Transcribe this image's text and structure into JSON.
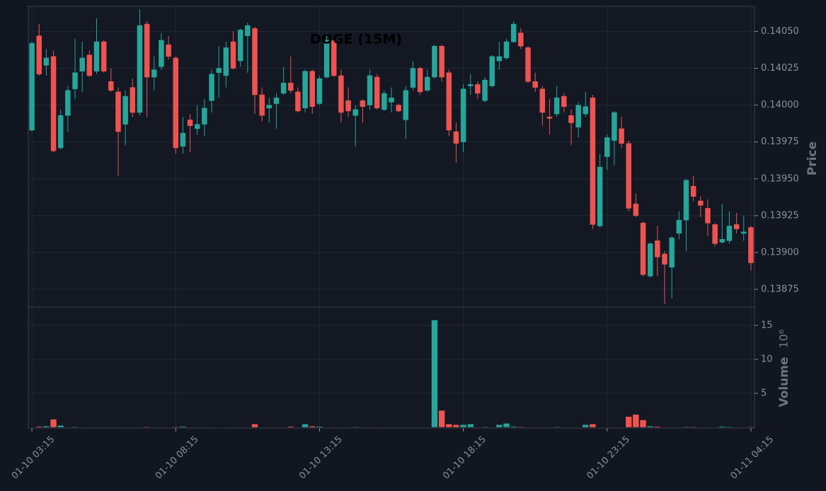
{
  "chart_data": {
    "type": "candlestick",
    "title": "DOGE (15M)",
    "ylabel": "Price",
    "volume_label": "Volume",
    "volume_scale": "10⁶",
    "up_color": "#26a69a",
    "down_color": "#ef5350",
    "grid": true,
    "categories": [
      "01-10 03:15",
      null,
      null,
      null,
      null,
      null,
      null,
      null,
      null,
      null,
      null,
      null,
      null,
      null,
      null,
      null,
      null,
      null,
      null,
      null,
      "01-10 08:15",
      null,
      null,
      null,
      null,
      null,
      null,
      null,
      null,
      null,
      null,
      null,
      null,
      null,
      null,
      null,
      null,
      null,
      null,
      null,
      "01-10 13:15",
      null,
      null,
      null,
      null,
      null,
      null,
      null,
      null,
      null,
      null,
      null,
      null,
      null,
      null,
      null,
      null,
      null,
      null,
      null,
      "01-10 18:15",
      null,
      null,
      null,
      null,
      null,
      null,
      null,
      null,
      null,
      null,
      null,
      null,
      null,
      null,
      null,
      null,
      null,
      null,
      null,
      "01-10 23:15",
      null,
      null,
      null,
      null,
      null,
      null,
      null,
      null,
      null,
      null,
      null,
      null,
      null,
      null,
      null,
      null,
      null,
      null,
      null,
      "01-11 04:15"
    ],
    "open": [
      0.13983,
      0.14047,
      0.14027,
      0.14033,
      0.13971,
      0.13993,
      0.14011,
      0.14023,
      0.14034,
      0.14023,
      0.14043,
      0.14016,
      0.14009,
      0.13987,
      0.14012,
      0.13995,
      0.14055,
      0.14019,
      0.14026,
      0.14041,
      0.14032,
      0.13972,
      0.1399,
      0.13984,
      0.13987,
      0.14003,
      0.14022,
      0.1402,
      0.14043,
      0.1403,
      0.14047,
      0.14052,
      0.14007,
      0.13998,
      0.14001,
      0.14008,
      0.14015,
      0.14009,
      0.13998,
      0.14023,
      0.14001,
      0.14019,
      0.14044,
      0.1402,
      0.14003,
      0.13993,
      0.14003,
      0.14,
      0.14019,
      0.13997,
      0.14002,
      0.14,
      0.1399,
      0.14012,
      0.14025,
      0.1401,
      0.14019,
      0.1404,
      0.14022,
      0.13982,
      0.13975,
      0.14013,
      0.14014,
      0.14003,
      0.14013,
      0.1403,
      0.14032,
      0.14043,
      0.14049,
      0.14039,
      0.14016,
      0.14011,
      0.13992,
      0.13994,
      0.14006,
      0.13993,
      0.13985,
      0.13994,
      0.14005,
      0.13918,
      0.13965,
      0.13976,
      0.13984,
      0.13974,
      0.13933,
      0.1392,
      0.13884,
      0.13908,
      0.13899,
      0.1389,
      0.13913,
      0.13922,
      0.13945,
      0.13935,
      0.1393,
      0.13919,
      0.13907,
      0.13908,
      0.13919,
      0.13913,
      0.13917
    ],
    "high": [
      0.14043,
      0.14055,
      0.14038,
      0.14037,
      0.13997,
      0.14013,
      0.14045,
      0.14043,
      0.14037,
      0.14059,
      0.14044,
      0.14025,
      0.14012,
      0.1401,
      0.14018,
      0.14065,
      0.14057,
      0.14033,
      0.14049,
      0.14047,
      0.14033,
      0.13992,
      0.13994,
      0.14,
      0.14004,
      0.14024,
      0.1404,
      0.14043,
      0.1405,
      0.14052,
      0.14056,
      0.14053,
      0.14012,
      0.14005,
      0.14008,
      0.14026,
      0.14033,
      0.14012,
      0.14024,
      0.14024,
      0.1402,
      0.14049,
      0.14045,
      0.14024,
      0.14012,
      0.14,
      0.14004,
      0.14024,
      0.14021,
      0.1401,
      0.14012,
      0.14001,
      0.14013,
      0.1403,
      0.14026,
      0.14024,
      0.14041,
      0.14041,
      0.14024,
      0.13988,
      0.14014,
      0.14021,
      0.14016,
      0.14019,
      0.14034,
      0.14043,
      0.14045,
      0.14057,
      0.14052,
      0.1404,
      0.14022,
      0.14013,
      0.14004,
      0.14013,
      0.14008,
      0.13997,
      0.14002,
      0.14009,
      0.14007,
      0.13967,
      0.1398,
      0.13996,
      0.13992,
      0.13976,
      0.1394,
      0.13921,
      0.13907,
      0.13918,
      0.13901,
      0.13911,
      0.13928,
      0.1395,
      0.13952,
      0.13938,
      0.13936,
      0.1392,
      0.13933,
      0.13928,
      0.13927,
      0.13925,
      0.13918
    ],
    "low": [
      0.13982,
      0.1402,
      0.1402,
      0.13968,
      0.1397,
      0.13982,
      0.14004,
      0.14009,
      0.14019,
      0.14021,
      0.14022,
      0.14009,
      0.13952,
      0.13973,
      0.13992,
      0.13993,
      0.13992,
      0.1401,
      0.14024,
      0.14031,
      0.13967,
      0.13967,
      0.13968,
      0.1398,
      0.13979,
      0.13995,
      0.14005,
      0.14012,
      0.14024,
      0.14026,
      0.14022,
      0.13994,
      0.13989,
      0.13988,
      0.13984,
      0.14007,
      0.14008,
      0.13995,
      0.13995,
      0.13994,
      0.14,
      0.14018,
      0.14019,
      0.13988,
      0.13992,
      0.13972,
      0.13988,
      0.13997,
      0.13997,
      0.13996,
      0.13995,
      0.13995,
      0.13977,
      0.1401,
      0.14007,
      0.14009,
      0.14018,
      0.14016,
      0.13979,
      0.13961,
      0.13968,
      0.14007,
      0.14004,
      0.14002,
      0.14012,
      0.14024,
      0.14031,
      0.14042,
      0.14038,
      0.14015,
      0.14009,
      0.13986,
      0.1398,
      0.13992,
      0.13995,
      0.13973,
      0.13978,
      0.13992,
      0.13916,
      0.13917,
      0.13956,
      0.13959,
      0.13971,
      0.13928,
      0.13924,
      0.13884,
      0.13883,
      0.13884,
      0.13865,
      0.13869,
      0.13909,
      0.13901,
      0.13935,
      0.13924,
      0.13911,
      0.13904,
      0.13906,
      0.13906,
      0.13913,
      0.13908,
      0.13888
    ],
    "close": [
      0.14042,
      0.14021,
      0.14032,
      0.13969,
      0.13993,
      0.1401,
      0.14022,
      0.14032,
      0.1402,
      0.14043,
      0.14023,
      0.1401,
      0.13982,
      0.14006,
      0.13995,
      0.14054,
      0.14019,
      0.14024,
      0.14044,
      0.14033,
      0.13971,
      0.13981,
      0.13986,
      0.13987,
      0.13998,
      0.14021,
      0.14025,
      0.14039,
      0.14025,
      0.14051,
      0.14054,
      0.14007,
      0.13993,
      0.14,
      0.14005,
      0.14015,
      0.1401,
      0.13996,
      0.14023,
      0.13999,
      0.14018,
      0.14044,
      0.1402,
      0.13995,
      0.13996,
      0.13997,
      0.13999,
      0.1402,
      0.13998,
      0.14008,
      0.14005,
      0.13996,
      0.1401,
      0.14025,
      0.14009,
      0.14019,
      0.1404,
      0.14019,
      0.13983,
      0.13974,
      0.14011,
      0.14014,
      0.14008,
      0.14017,
      0.14033,
      0.14033,
      0.14043,
      0.14055,
      0.1404,
      0.14016,
      0.14012,
      0.13995,
      0.13991,
      0.14005,
      0.13999,
      0.13988,
      0.14,
      0.13999,
      0.13919,
      0.13958,
      0.13978,
      0.13995,
      0.13974,
      0.1393,
      0.13925,
      0.13885,
      0.13906,
      0.13897,
      0.13892,
      0.1391,
      0.13922,
      0.13949,
      0.13938,
      0.13932,
      0.1392,
      0.13906,
      0.13909,
      0.13918,
      0.13916,
      0.13914,
      0.13893
    ],
    "volume": [
      0.05,
      0.15,
      0.2,
      1.2,
      0.3,
      0,
      0.1,
      0.05,
      0,
      0,
      0,
      0,
      0,
      0.05,
      0.05,
      0,
      0.1,
      0,
      0,
      0.05,
      0.1,
      0.15,
      0,
      0,
      0,
      0,
      0.05,
      0.05,
      0,
      0,
      0,
      0.5,
      0,
      0,
      0,
      0,
      0.15,
      0,
      0.5,
      0.2,
      0.15,
      0,
      0,
      0.05,
      0,
      0.1,
      0,
      0,
      0.05,
      0,
      0.05,
      0,
      0,
      0,
      0,
      0,
      15.8,
      2.5,
      0.5,
      0.4,
      0.4,
      0.5,
      0,
      0.1,
      0,
      0.4,
      0.6,
      0.15,
      0.1,
      0,
      0,
      0,
      0,
      0.1,
      0,
      0.05,
      0,
      0.4,
      0.5,
      0,
      0.05,
      0,
      0.05,
      1.6,
      1.9,
      1.1,
      0.2,
      0.15,
      0.05,
      0,
      0,
      0.1,
      0.1,
      0.05,
      0,
      0,
      0.15,
      0.1,
      0,
      0,
      0.1
    ],
    "ylim": [
      0.13863,
      0.14067
    ],
    "yticks": [
      {
        "value": 0.13875,
        "label": "0.13875"
      },
      {
        "value": 0.139,
        "label": "0.13900"
      },
      {
        "value": 0.13925,
        "label": "0.13925"
      },
      {
        "value": 0.1395,
        "label": "0.13950"
      },
      {
        "value": 0.13975,
        "label": "0.13975"
      },
      {
        "value": 0.14,
        "label": "0.14000"
      },
      {
        "value": 0.14025,
        "label": "0.14025"
      },
      {
        "value": 0.1405,
        "label": "0.14050"
      }
    ],
    "volume_ylim": [
      -0.1,
      17.7
    ],
    "volume_yticks": [
      5,
      10,
      15
    ]
  }
}
